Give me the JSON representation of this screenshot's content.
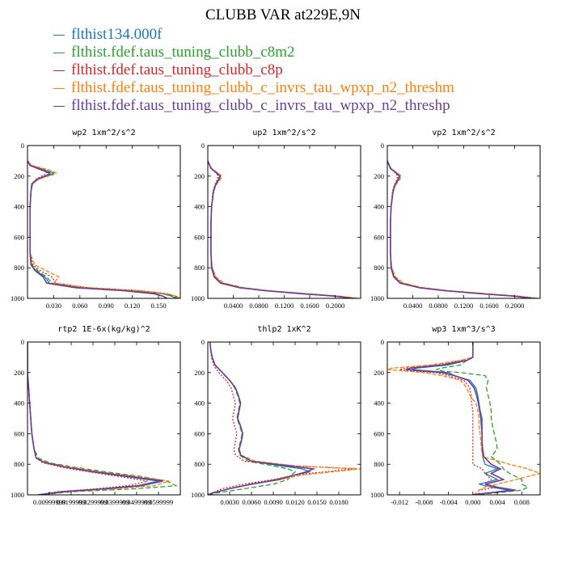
{
  "title": "CLUBB VAR at229E,9N",
  "legend": [
    {
      "label": "flthist134.000f",
      "color": "#1f77b4"
    },
    {
      "label": "flthist.fdef.taus_tuning_clubb_c8m2",
      "color": "#2ca02c"
    },
    {
      "label": "flthist.fdef.taus_tuning_clubb_c8p",
      "color": "#d62728"
    },
    {
      "label": "flthist.fdef.taus_tuning_clubb_c_invrs_tau_wpxp_n2_threshm",
      "color": "#ff7f0e"
    },
    {
      "label": "flthist.fdef.taus_tuning_clubb_c_invrs_tau_wpxp_n2_threshp",
      "color": "#6a3d9a"
    }
  ],
  "chart_data": [
    {
      "type": "line",
      "title": "wp2  1xm^2/s^2",
      "xlim": [
        0,
        0.175
      ],
      "ylim": [
        0,
        1000
      ],
      "y_inverted": true,
      "xticks": [
        0.03,
        0.06,
        0.09,
        0.12,
        0.15
      ],
      "xtick_labels": [
        "0.030",
        "0.060",
        "0.090",
        "0.120",
        "0.150"
      ],
      "yticks": [
        0,
        200,
        400,
        600,
        800,
        1000
      ],
      "y": [
        100,
        130,
        160,
        180,
        190,
        200,
        220,
        250,
        300,
        400,
        500,
        600,
        700,
        780,
        820,
        860,
        900,
        930,
        950,
        970,
        985,
        1000
      ],
      "series": [
        {
          "values": [
            0,
            0.004,
            0.02,
            0.03,
            0.028,
            0.022,
            0.012,
            0.006,
            0.004,
            0.003,
            0.003,
            0.003,
            0.003,
            0.004,
            0.01,
            0.02,
            0.025,
            0.06,
            0.12,
            0.155,
            0.165,
            0.17
          ]
        },
        {
          "values": [
            0,
            0.003,
            0.018,
            0.028,
            0.025,
            0.02,
            0.011,
            0.005,
            0.004,
            0.003,
            0.003,
            0.003,
            0.003,
            0.005,
            0.012,
            0.022,
            0.028,
            0.065,
            0.125,
            0.158,
            0.168,
            0.172
          ]
        },
        {
          "values": [
            0,
            0.004,
            0.02,
            0.022,
            0.02,
            0.016,
            0.01,
            0.005,
            0.004,
            0.003,
            0.003,
            0.003,
            0.003,
            0.006,
            0.015,
            0.028,
            0.032,
            0.07,
            0.13,
            0.16,
            0.17,
            0.173
          ]
        },
        {
          "values": [
            0,
            0.005,
            0.025,
            0.033,
            0.03,
            0.024,
            0.013,
            0.006,
            0.004,
            0.003,
            0.003,
            0.003,
            0.003,
            0.008,
            0.022,
            0.036,
            0.03,
            0.068,
            0.128,
            0.16,
            0.17,
            0.175
          ]
        },
        {
          "values": [
            0,
            0.003,
            0.016,
            0.025,
            0.024,
            0.02,
            0.011,
            0.005,
            0.004,
            0.003,
            0.003,
            0.003,
            0.003,
            0.004,
            0.009,
            0.018,
            0.022,
            0.055,
            0.11,
            0.145,
            0.155,
            0.16
          ]
        }
      ]
    },
    {
      "type": "line",
      "title": "up2  1xm^2/s^2",
      "xlim": [
        0,
        0.24
      ],
      "ylim": [
        0,
        1000
      ],
      "y_inverted": true,
      "xticks": [
        0.04,
        0.08,
        0.12,
        0.16,
        0.2
      ],
      "xtick_labels": [
        "0.0400",
        "0.0800",
        "0.1200",
        "0.1600",
        "0.2000"
      ],
      "yticks": [
        0,
        200,
        400,
        600,
        800,
        1000
      ],
      "y": [
        100,
        150,
        180,
        200,
        220,
        260,
        300,
        400,
        500,
        600,
        700,
        800,
        860,
        900,
        930,
        950,
        970,
        985,
        1000
      ],
      "series": [
        {
          "values": [
            0,
            0.005,
            0.015,
            0.02,
            0.018,
            0.012,
            0.009,
            0.006,
            0.005,
            0.005,
            0.005,
            0.006,
            0.01,
            0.02,
            0.05,
            0.09,
            0.15,
            0.2,
            0.23
          ]
        },
        {
          "values": [
            0,
            0.005,
            0.014,
            0.019,
            0.017,
            0.012,
            0.009,
            0.006,
            0.005,
            0.005,
            0.005,
            0.006,
            0.011,
            0.022,
            0.052,
            0.092,
            0.152,
            0.202,
            0.232
          ]
        },
        {
          "values": [
            0,
            0.006,
            0.013,
            0.016,
            0.015,
            0.011,
            0.008,
            0.006,
            0.005,
            0.005,
            0.005,
            0.007,
            0.012,
            0.024,
            0.055,
            0.095,
            0.155,
            0.205,
            0.235
          ]
        },
        {
          "values": [
            0,
            0.006,
            0.016,
            0.022,
            0.02,
            0.013,
            0.009,
            0.006,
            0.005,
            0.005,
            0.005,
            0.007,
            0.013,
            0.025,
            0.056,
            0.096,
            0.156,
            0.206,
            0.238
          ]
        },
        {
          "values": [
            0,
            0.005,
            0.014,
            0.019,
            0.017,
            0.012,
            0.009,
            0.006,
            0.005,
            0.005,
            0.005,
            0.006,
            0.01,
            0.02,
            0.05,
            0.09,
            0.148,
            0.198,
            0.228
          ]
        }
      ]
    },
    {
      "type": "line",
      "title": "vp2  1xm^2/s^2",
      "xlim": [
        0,
        0.24
      ],
      "ylim": [
        0,
        1000
      ],
      "y_inverted": true,
      "xticks": [
        0.04,
        0.08,
        0.12,
        0.16,
        0.2
      ],
      "xtick_labels": [
        "0.0400",
        "0.0800",
        "0.1200",
        "0.1600",
        "0.2000"
      ],
      "yticks": [
        0,
        200,
        400,
        600,
        800,
        1000
      ],
      "y": [
        100,
        150,
        180,
        200,
        220,
        260,
        300,
        400,
        500,
        600,
        700,
        800,
        860,
        900,
        930,
        950,
        970,
        985,
        1000
      ],
      "series": [
        {
          "values": [
            0,
            0.005,
            0.015,
            0.02,
            0.018,
            0.012,
            0.009,
            0.006,
            0.005,
            0.005,
            0.005,
            0.006,
            0.01,
            0.02,
            0.05,
            0.09,
            0.15,
            0.2,
            0.23
          ]
        },
        {
          "values": [
            0,
            0.005,
            0.014,
            0.019,
            0.017,
            0.012,
            0.009,
            0.006,
            0.005,
            0.005,
            0.005,
            0.006,
            0.011,
            0.022,
            0.052,
            0.092,
            0.152,
            0.202,
            0.232
          ]
        },
        {
          "values": [
            0,
            0.006,
            0.013,
            0.016,
            0.015,
            0.011,
            0.008,
            0.006,
            0.005,
            0.005,
            0.005,
            0.007,
            0.012,
            0.024,
            0.055,
            0.095,
            0.155,
            0.205,
            0.235
          ]
        },
        {
          "values": [
            0,
            0.006,
            0.016,
            0.022,
            0.02,
            0.013,
            0.009,
            0.006,
            0.005,
            0.005,
            0.005,
            0.007,
            0.013,
            0.025,
            0.056,
            0.096,
            0.156,
            0.206,
            0.238
          ]
        },
        {
          "values": [
            0,
            0.005,
            0.014,
            0.019,
            0.017,
            0.012,
            0.009,
            0.006,
            0.005,
            0.005,
            0.005,
            0.006,
            0.01,
            0.02,
            0.05,
            0.09,
            0.148,
            0.198,
            0.228
          ]
        }
      ]
    },
    {
      "type": "line",
      "title": "rtp2  1E-6x(kg/kg)^2",
      "xlim": [
        0,
        0.07
      ],
      "ylim": [
        0,
        1000
      ],
      "y_inverted": true,
      "xticks": [
        0.01,
        0.02,
        0.03,
        0.04,
        0.05,
        0.06
      ],
      "xtick_labels": [
        "0.00999999",
        "0.0199999",
        "0.0299999",
        "0.0399999",
        "0.0499999",
        "0.0599999"
      ],
      "yticks": [
        0,
        200,
        400,
        600,
        800,
        1000
      ],
      "y": [
        0,
        200,
        300,
        400,
        500,
        600,
        700,
        760,
        790,
        820,
        850,
        880,
        910,
        940,
        960,
        980,
        1000
      ],
      "series": [
        {
          "values": [
            0,
            0,
            0.0005,
            0.001,
            0.0015,
            0.002,
            0.003,
            0.004,
            0.008,
            0.018,
            0.03,
            0.045,
            0.06,
            0.05,
            0.035,
            0.015,
            0.005
          ]
        },
        {
          "values": [
            0,
            0,
            0.0005,
            0.001,
            0.0015,
            0.002,
            0.003,
            0.005,
            0.01,
            0.022,
            0.036,
            0.052,
            0.064,
            0.068,
            0.05,
            0.02,
            0.006
          ]
        },
        {
          "values": [
            0,
            0,
            0.0005,
            0.001,
            0.0015,
            0.002,
            0.003,
            0.004,
            0.007,
            0.016,
            0.028,
            0.042,
            0.055,
            0.046,
            0.032,
            0.014,
            0.004
          ]
        },
        {
          "values": [
            0,
            0,
            0.0005,
            0.001,
            0.0015,
            0.002,
            0.003,
            0.004,
            0.009,
            0.02,
            0.033,
            0.05,
            0.065,
            0.058,
            0.04,
            0.018,
            0.005
          ]
        },
        {
          "values": [
            0,
            0,
            0.0005,
            0.001,
            0.0015,
            0.002,
            0.003,
            0.004,
            0.008,
            0.018,
            0.031,
            0.047,
            0.062,
            0.052,
            0.036,
            0.016,
            0.005
          ]
        }
      ]
    },
    {
      "type": "line",
      "title": "thlp2  1xK^2",
      "xlim": [
        0,
        0.021
      ],
      "ylim": [
        0,
        1000
      ],
      "y_inverted": true,
      "xticks": [
        0.003,
        0.006,
        0.009,
        0.012,
        0.015,
        0.018
      ],
      "xtick_labels": [
        "0.0030",
        "0.0060",
        "0.0090",
        "0.0120",
        "0.0150",
        "0.0180"
      ],
      "yticks": [
        0,
        200,
        400,
        600,
        800,
        1000
      ],
      "y": [
        0,
        50,
        100,
        150,
        200,
        250,
        300,
        350,
        400,
        450,
        500,
        550,
        600,
        650,
        700,
        740,
        780,
        810,
        830,
        850,
        870,
        900,
        930,
        960,
        990,
        1000
      ],
      "series": [
        {
          "values": [
            0.0003,
            0.0004,
            0.0006,
            0.001,
            0.002,
            0.003,
            0.0038,
            0.0042,
            0.0045,
            0.0043,
            0.0041,
            0.0045,
            0.0048,
            0.0046,
            0.0043,
            0.0045,
            0.006,
            0.01,
            0.013,
            0.014,
            0.012,
            0.01,
            0.006,
            0.003,
            0.0005,
            0
          ]
        },
        {
          "values": [
            0.0003,
            0.0004,
            0.0006,
            0.001,
            0.002,
            0.003,
            0.0037,
            0.0041,
            0.0044,
            0.0042,
            0.004,
            0.0044,
            0.0047,
            0.0045,
            0.0042,
            0.0044,
            0.0055,
            0.009,
            0.011,
            0.012,
            0.0115,
            0.011,
            0.009,
            0.005,
            0.001,
            0
          ]
        },
        {
          "values": [
            0.0003,
            0.0004,
            0.0005,
            0.0008,
            0.0015,
            0.0025,
            0.0032,
            0.0035,
            0.0038,
            0.0036,
            0.0034,
            0.0037,
            0.004,
            0.0038,
            0.0036,
            0.0038,
            0.005,
            0.012,
            0.02,
            0.016,
            0.012,
            0.009,
            0.005,
            0.002,
            0.0005,
            0
          ]
        },
        {
          "values": [
            0.0003,
            0.0004,
            0.0006,
            0.001,
            0.002,
            0.003,
            0.0038,
            0.0042,
            0.0045,
            0.0043,
            0.0041,
            0.0045,
            0.0048,
            0.0046,
            0.0043,
            0.0046,
            0.0065,
            0.012,
            0.021,
            0.017,
            0.013,
            0.01,
            0.006,
            0.003,
            0.0005,
            0
          ]
        },
        {
          "values": [
            0.0003,
            0.0004,
            0.0006,
            0.001,
            0.002,
            0.003,
            0.0038,
            0.0042,
            0.0045,
            0.0043,
            0.0041,
            0.0045,
            0.0048,
            0.0046,
            0.0043,
            0.0045,
            0.006,
            0.011,
            0.0145,
            0.0135,
            0.012,
            0.0095,
            0.006,
            0.003,
            0.0005,
            0
          ]
        }
      ]
    },
    {
      "type": "line",
      "title": "wp3  1xm^3/s^3",
      "xlim": [
        -0.014,
        0.011
      ],
      "ylim": [
        0,
        1000
      ],
      "y_inverted": true,
      "xticks": [
        -0.012,
        -0.008,
        -0.004,
        0,
        0.004,
        0.008
      ],
      "xtick_labels": [
        "-0.012",
        "-0.008",
        "-0.004",
        "0.000",
        "0.004",
        "0.008"
      ],
      "yticks": [
        0,
        200,
        400,
        600,
        800,
        1000
      ],
      "y": [
        0,
        100,
        120,
        150,
        170,
        180,
        190,
        200,
        220,
        250,
        300,
        350,
        400,
        450,
        500,
        550,
        600,
        650,
        700,
        750,
        800,
        830,
        860,
        900,
        930,
        950,
        970,
        990,
        1000
      ],
      "series": [
        {
          "values": [
            0,
            0,
            -0.001,
            -0.004,
            -0.009,
            -0.01,
            -0.007,
            -0.004,
            -0.003,
            -0.0005,
            0.0005,
            0.0008,
            0.001,
            0.0012,
            0.0015,
            0.0015,
            0.0015,
            0.0015,
            0.0015,
            0.0016,
            0.002,
            0.004,
            0.002,
            0.004,
            0.001,
            0.003,
            0.006,
            0.002,
            0
          ]
        },
        {
          "values": [
            0,
            0,
            -0.001,
            -0.002,
            -0.005,
            -0.006,
            -0.005,
            -0.002,
            0.002,
            0.0025,
            0.0022,
            0.0025,
            0.0028,
            0.003,
            0.003,
            0.0032,
            0.0035,
            0.0038,
            0.004,
            0.003,
            0.0045,
            0.005,
            0.006,
            0.008,
            0.008,
            0.009,
            0.008,
            0.003,
            0
          ]
        },
        {
          "values": [
            0,
            0,
            -0.002,
            -0.006,
            -0.011,
            -0.012,
            -0.01,
            -0.006,
            -0.004,
            -0.0015,
            -0.0005,
            -0.0003,
            -0.0002,
            0,
            0,
            0,
            0,
            0,
            0,
            0,
            0,
            0.0015,
            0.002,
            0.003,
            0.002,
            0.004,
            0.001,
            0.001,
            0
          ]
        },
        {
          "values": [
            0,
            0,
            -0.002,
            -0.007,
            -0.013,
            -0.014,
            -0.011,
            -0.008,
            -0.005,
            -0.002,
            -0.001,
            -0.0005,
            0.0005,
            0.0008,
            0.001,
            0.001,
            0.0012,
            0.0013,
            0.0014,
            0.0016,
            0.006,
            0.009,
            0.011,
            0.007,
            0.004,
            0.002,
            0.001,
            0.0005,
            0
          ]
        },
        {
          "values": [
            0,
            0,
            -0.001,
            -0.005,
            -0.01,
            -0.011,
            -0.008,
            -0.005,
            -0.003,
            -0.0008,
            0.0002,
            0.0006,
            0.0009,
            0.0011,
            0.0013,
            0.0014,
            0.0015,
            0.0015,
            0.0016,
            0.0018,
            0.003,
            0.0045,
            0.003,
            0.005,
            0.002,
            0.004,
            0.007,
            0.002,
            0
          ]
        }
      ]
    }
  ]
}
